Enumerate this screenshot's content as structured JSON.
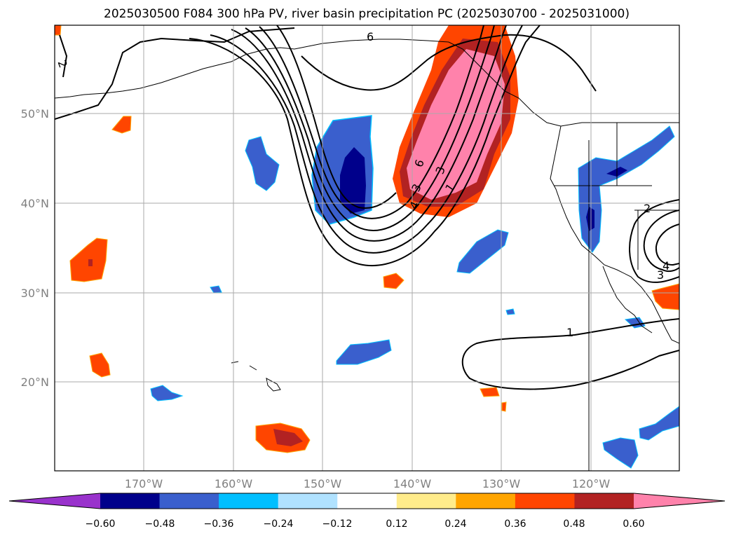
{
  "title": "2025030500 F084 300 hPa PV, river basin precipitation PC (2025030700 - 2025031000)",
  "map": {
    "lat_ticks": [
      "50°N",
      "40°N",
      "30°N",
      "20°N"
    ],
    "lon_ticks": [
      "170°W",
      "160°W",
      "150°W",
      "140°W",
      "130°W",
      "120°W"
    ],
    "gridlines": true,
    "contour_labels": [
      "6",
      "2",
      "6",
      "3",
      "4",
      "3",
      "1",
      "2",
      "3",
      "4",
      "1"
    ]
  },
  "colorbar": {
    "ticks": [
      "−0.60",
      "−0.48",
      "−0.36",
      "−0.24",
      "−0.12",
      "0.12",
      "0.24",
      "0.36",
      "0.48",
      "0.60"
    ],
    "colors": [
      "#9932cc",
      "#00008b",
      "#3a5fcd",
      "#00bfff",
      "#b0e2ff",
      "#ffffff",
      "#ffec8b",
      "#ffa500",
      "#ff4500",
      "#b22222",
      "#ff82ab"
    ]
  }
}
